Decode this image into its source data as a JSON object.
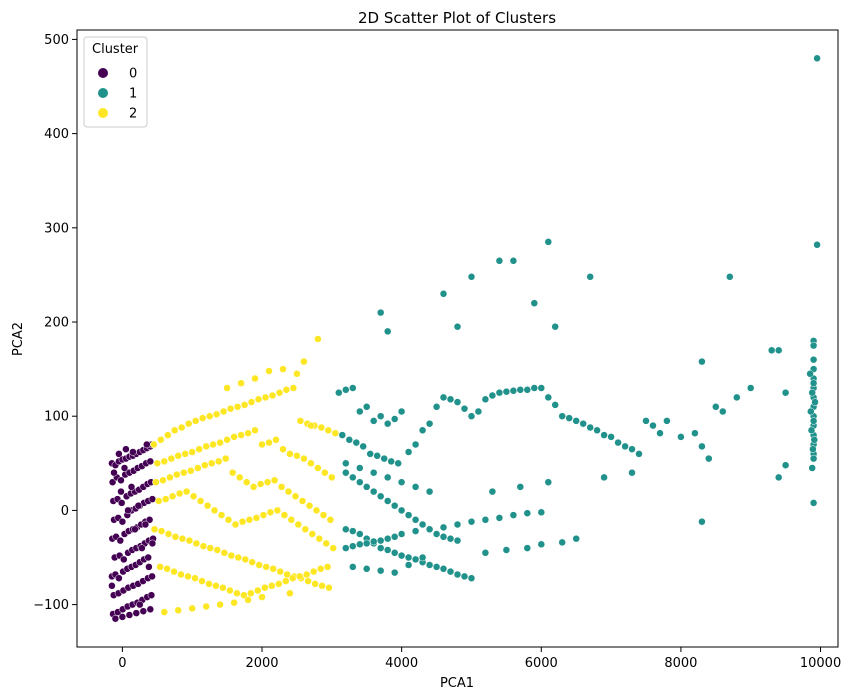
{
  "chart_data": {
    "type": "scatter",
    "title": "2D Scatter Plot of Clusters",
    "xlabel": "PCA1",
    "ylabel": "PCA2",
    "xlim": [
      -650,
      10250
    ],
    "ylim": [
      -145,
      510
    ],
    "xticks": [
      0,
      2000,
      4000,
      6000,
      8000,
      10000
    ],
    "xtick_labels": [
      "0",
      "2000",
      "4000",
      "6000",
      "8000",
      "10000"
    ],
    "yticks": [
      -100,
      0,
      100,
      200,
      300,
      400,
      500
    ],
    "ytick_labels": [
      "−100",
      "0",
      "100",
      "200",
      "300",
      "400",
      "500"
    ],
    "grid": false,
    "legend": {
      "title": "Cluster",
      "placement": "top-left",
      "entries": [
        {
          "label": "0",
          "color": "#440154"
        },
        {
          "label": "1",
          "color": "#21918c"
        },
        {
          "label": "2",
          "color": "#fde725"
        }
      ]
    },
    "series": [
      {
        "name": "0",
        "color": "#440154",
        "x": [
          -150,
          -100,
          -50,
          0,
          50,
          100,
          150,
          200,
          250,
          300,
          350,
          400,
          420,
          -140,
          -80,
          -20,
          40,
          100,
          160,
          220,
          280,
          340,
          400,
          -130,
          -70,
          -10,
          60,
          120,
          180,
          240,
          300,
          360,
          410,
          -120,
          -60,
          0,
          70,
          130,
          190,
          250,
          310,
          370,
          430,
          -145,
          -90,
          -30,
          30,
          90,
          150,
          210,
          270,
          330,
          390,
          -110,
          -40,
          20,
          80,
          140,
          200,
          260,
          320,
          380,
          440,
          -150,
          -100,
          -50,
          10,
          70,
          130,
          190,
          250,
          310,
          370,
          -125,
          -55,
          15,
          85,
          155,
          225,
          295,
          365,
          425,
          -135,
          -65,
          5,
          75,
          145,
          215,
          285,
          355,
          415,
          -100,
          0,
          100,
          200,
          300,
          400,
          -120,
          -20,
          80,
          180,
          280,
          380,
          30,
          130,
          230,
          330,
          430,
          -150,
          -50,
          50,
          150,
          250,
          350
        ],
        "y": [
          50,
          48,
          52,
          54,
          55,
          57,
          58,
          60,
          62,
          64,
          66,
          68,
          70,
          30,
          35,
          32,
          38,
          40,
          42,
          45,
          47,
          50,
          52,
          10,
          12,
          8,
          15,
          18,
          20,
          22,
          25,
          28,
          30,
          -10,
          -8,
          -12,
          -5,
          0,
          2,
          5,
          8,
          10,
          12,
          -30,
          -28,
          -32,
          -25,
          -22,
          -20,
          -18,
          -15,
          -12,
          -10,
          -50,
          -48,
          -52,
          -45,
          -42,
          -40,
          -38,
          -35,
          -32,
          -30,
          -70,
          -68,
          -72,
          -65,
          -62,
          -60,
          -58,
          -55,
          -52,
          -50,
          -90,
          -88,
          -85,
          -82,
          -80,
          -78,
          -75,
          -72,
          -70,
          -110,
          -108,
          -105,
          -102,
          -100,
          -98,
          -95,
          -92,
          -90,
          -115,
          -113,
          -111,
          -109,
          -107,
          -105,
          40,
          20,
          0,
          -20,
          -40,
          -60,
          45,
          25,
          5,
          -15,
          -35,
          -80,
          60,
          65,
          62,
          -100,
          70
        ],
        "point_size": 6
      },
      {
        "name": "1",
        "color": "#21918c",
        "x": [
          3100,
          3200,
          3300,
          3400,
          3500,
          3600,
          3700,
          3800,
          3900,
          4000,
          3150,
          3250,
          3350,
          3450,
          3550,
          3650,
          3750,
          3850,
          3950,
          4100,
          4200,
          4300,
          4400,
          4500,
          4600,
          4700,
          4800,
          4900,
          5000,
          5100,
          5200,
          5300,
          5400,
          5500,
          5600,
          5700,
          5800,
          5900,
          6000,
          6100,
          6200,
          6300,
          6400,
          6500,
          6600,
          6700,
          6800,
          6900,
          7000,
          7100,
          7200,
          7300,
          7400,
          7500,
          7600,
          7700,
          7800,
          8000,
          8200,
          8300,
          8400,
          8500,
          8600,
          8800,
          9000,
          9300,
          9400,
          9500,
          9900,
          9900,
          9900,
          9900,
          9900,
          9900,
          9900,
          9900,
          9900,
          9900,
          9900,
          9900,
          3200,
          3300,
          3400,
          3500,
          3600,
          3700,
          3800,
          3900,
          4000,
          4100,
          4200,
          4300,
          4400,
          4500,
          4600,
          4700,
          4800,
          3200,
          3300,
          3400,
          3500,
          3600,
          3700,
          3800,
          3900,
          4000,
          4100,
          4200,
          4300,
          4400,
          4500,
          4600,
          4700,
          4800,
          4900,
          5000,
          3200,
          3300,
          3400,
          3500,
          3600,
          3700,
          3800,
          3900,
          4000,
          4200,
          4400,
          4600,
          4800,
          5000,
          5200,
          5400,
          5600,
          5800,
          6000,
          3700,
          3800,
          4600,
          4800,
          5000,
          5400,
          5600,
          5900,
          6100,
          6200,
          6700,
          8700,
          9950,
          9950,
          8300,
          3200,
          3400,
          3600,
          3800,
          4000,
          4200,
          4400,
          3300,
          3500,
          3700,
          3900,
          4100,
          4300,
          5200,
          5500,
          5800,
          6000,
          6300,
          6500,
          5300,
          5700,
          6100,
          6900,
          7300,
          8300,
          9400,
          9500,
          9900,
          9900,
          9850,
          9900,
          9880,
          9920,
          9860,
          9900,
          9870,
          9910,
          9890,
          9900,
          9880,
          9900
        ],
        "y": [
          125,
          128,
          130,
          105,
          110,
          95,
          100,
          92,
          97,
          105,
          80,
          75,
          72,
          68,
          60,
          58,
          55,
          52,
          50,
          62,
          70,
          85,
          92,
          110,
          120,
          118,
          115,
          108,
          100,
          105,
          118,
          122,
          125,
          126,
          127,
          128,
          128,
          130,
          130,
          120,
          112,
          100,
          98,
          95,
          92,
          88,
          85,
          80,
          78,
          72,
          68,
          65,
          60,
          95,
          90,
          82,
          95,
          78,
          82,
          68,
          55,
          110,
          105,
          120,
          130,
          170,
          170,
          125,
          180,
          160,
          150,
          140,
          130,
          120,
          110,
          100,
          90,
          80,
          70,
          60,
          40,
          35,
          30,
          25,
          20,
          15,
          10,
          5,
          0,
          -5,
          -10,
          -15,
          -20,
          -25,
          -28,
          -30,
          -32,
          -20,
          -22,
          -25,
          -30,
          -35,
          -40,
          -42,
          -45,
          -48,
          -50,
          -52,
          -55,
          -58,
          -60,
          -62,
          -65,
          -68,
          -70,
          -72,
          -40,
          -38,
          -36,
          -35,
          -33,
          -32,
          -30,
          -28,
          -25,
          -22,
          -20,
          -18,
          -15,
          -12,
          -10,
          -8,
          -5,
          -3,
          -2,
          210,
          190,
          230,
          195,
          248,
          265,
          265,
          220,
          285,
          195,
          248,
          248,
          480,
          282,
          158,
          50,
          45,
          40,
          35,
          30,
          25,
          20,
          -60,
          -62,
          -64,
          -66,
          -58,
          -50,
          -45,
          -42,
          -40,
          -36,
          -34,
          -30,
          20,
          25,
          30,
          35,
          40,
          -12,
          35,
          48,
          180,
          175,
          145,
          135,
          125,
          115,
          105,
          95,
          85,
          75,
          65,
          55,
          45,
          8
        ],
        "point_size": 6
      },
      {
        "name": "2",
        "color": "#fde725",
        "x": [
          450,
          550,
          650,
          750,
          850,
          950,
          1050,
          1150,
          1250,
          1350,
          1450,
          1550,
          1650,
          1750,
          1850,
          1950,
          2050,
          2150,
          2250,
          2350,
          2450,
          2550,
          2650,
          2750,
          2850,
          2950,
          3050,
          500,
          600,
          700,
          800,
          900,
          1000,
          1100,
          1200,
          1300,
          1400,
          1500,
          1600,
          1700,
          1800,
          1900,
          2000,
          2100,
          2200,
          2300,
          2400,
          2500,
          2600,
          2700,
          2800,
          2900,
          3000,
          480,
          580,
          680,
          780,
          880,
          980,
          1080,
          1180,
          1280,
          1380,
          1480,
          1580,
          1680,
          1780,
          1880,
          1980,
          2080,
          2180,
          2280,
          2380,
          2480,
          2580,
          2680,
          2780,
          2880,
          2980,
          520,
          620,
          720,
          820,
          920,
          1020,
          1120,
          1220,
          1320,
          1420,
          1520,
          1620,
          1720,
          1820,
          1920,
          2020,
          2120,
          2220,
          2320,
          2420,
          2520,
          2620,
          2720,
          2820,
          2920,
          3020,
          460,
          560,
          660,
          760,
          860,
          960,
          1060,
          1160,
          1260,
          1360,
          1460,
          1560,
          1660,
          1760,
          1860,
          1960,
          2060,
          2160,
          2260,
          2360,
          2460,
          2560,
          2660,
          2760,
          2860,
          2960,
          540,
          640,
          740,
          840,
          940,
          1040,
          1140,
          1240,
          1340,
          1440,
          1540,
          1640,
          1740,
          1840,
          1940,
          2040,
          2140,
          2240,
          2340,
          2440,
          2540,
          2640,
          2740,
          2840,
          2940,
          1500,
          1700,
          1900,
          2100,
          2300,
          2500,
          2600,
          2800,
          2700,
          2400,
          2000,
          1800,
          1600,
          1400,
          1200,
          1000,
          800,
          600
        ],
        "y": [
          70,
          75,
          80,
          85,
          88,
          92,
          95,
          98,
          100,
          102,
          105,
          108,
          110,
          112,
          115,
          118,
          120,
          122,
          125,
          128,
          130,
          95,
          92,
          90,
          88,
          85,
          82,
          50,
          52,
          55,
          58,
          60,
          62,
          65,
          68,
          70,
          72,
          75,
          78,
          80,
          82,
          85,
          70,
          72,
          75,
          65,
          60,
          58,
          55,
          50,
          45,
          40,
          35,
          30,
          32,
          35,
          38,
          40,
          42,
          45,
          48,
          50,
          52,
          55,
          40,
          35,
          30,
          25,
          28,
          30,
          32,
          25,
          20,
          15,
          10,
          5,
          0,
          -5,
          -10,
          10,
          12,
          15,
          18,
          20,
          15,
          10,
          5,
          0,
          -5,
          -10,
          -15,
          -12,
          -10,
          -8,
          -5,
          -2,
          0,
          -5,
          -10,
          -15,
          -20,
          -25,
          -30,
          -35,
          -40,
          -20,
          -22,
          -25,
          -28,
          -30,
          -32,
          -35,
          -38,
          -40,
          -42,
          -45,
          -48,
          -50,
          -52,
          -55,
          -58,
          -60,
          -62,
          -65,
          -68,
          -70,
          -72,
          -75,
          -78,
          -80,
          -82,
          -60,
          -62,
          -65,
          -68,
          -70,
          -72,
          -75,
          -78,
          -80,
          -82,
          -85,
          -88,
          -90,
          -88,
          -85,
          -82,
          -80,
          -78,
          -75,
          -72,
          -70,
          -68,
          -65,
          -62,
          -60,
          130,
          135,
          140,
          148,
          150,
          145,
          158,
          182,
          90,
          -88,
          -92,
          -95,
          -98,
          -100,
          -102,
          -104,
          -106,
          -108
        ],
        "point_size": 6
      }
    ]
  }
}
